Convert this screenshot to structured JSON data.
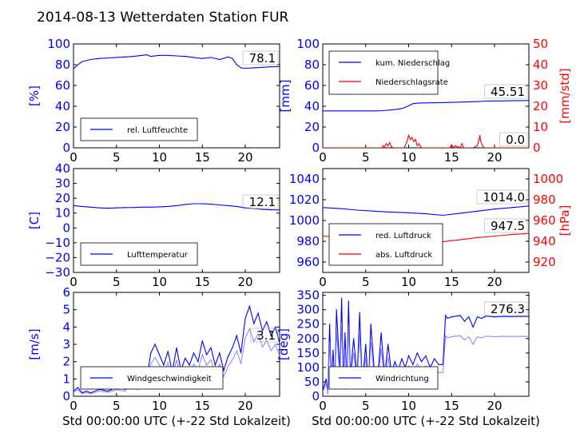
{
  "figure": {
    "title": "2014-08-13 Wetterdaten Station FUR",
    "xlabel": "Std 00:00:00 UTC (+-22 Std Lokalzeit)",
    "colors": {
      "blue": "#0000ff",
      "red": "#ff0000",
      "lightblue": "#8080ff",
      "black": "#000000"
    }
  },
  "chart_data": [
    {
      "type": "line",
      "xlim": [
        0,
        24
      ],
      "xticks": [
        "0",
        "5",
        "10",
        "15",
        "20"
      ],
      "ylim": [
        0,
        100
      ],
      "yticks": [
        "0",
        "20",
        "40",
        "60",
        "80",
        "100"
      ],
      "ylabel": "[%]",
      "legend": [
        "rel. Luftfeuchte"
      ],
      "annotation": "78.1",
      "series": [
        {
          "name": "rel. Luftfeuchte",
          "color": "#0000ff",
          "x": [
            0,
            0.5,
            1,
            2,
            3,
            4,
            5,
            6,
            7,
            8,
            8.5,
            9,
            10,
            11,
            12,
            13,
            14,
            15,
            16,
            17,
            18,
            18.5,
            19,
            19.5,
            20,
            21,
            22,
            23,
            24
          ],
          "values": [
            76,
            80,
            83,
            85,
            86,
            86.5,
            87,
            87.5,
            88,
            89,
            89.5,
            88,
            89,
            89,
            88.5,
            88,
            87,
            86,
            87,
            85,
            87.5,
            86,
            80,
            77,
            76.5,
            77,
            77.5,
            78,
            78.1
          ]
        }
      ]
    },
    {
      "type": "line",
      "xlim": [
        0,
        24
      ],
      "xticks": [
        "0",
        "5",
        "10",
        "15",
        "20"
      ],
      "ylim": [
        0,
        100
      ],
      "yticks": [
        "0",
        "20",
        "40",
        "60",
        "80",
        "100"
      ],
      "ylabel": "[mm]",
      "y2lim": [
        0,
        50
      ],
      "y2ticks": [
        "0",
        "10",
        "20",
        "30",
        "40",
        "50"
      ],
      "y2label": "[mm/std]",
      "legend": [
        "kum. Niederschlag",
        "Niederschlagsrate"
      ],
      "annotations": [
        "45.51",
        "0.0"
      ],
      "series": [
        {
          "name": "kum. Niederschlag",
          "color": "#0000ff",
          "axis": "left",
          "x": [
            0,
            6,
            7,
            8,
            9,
            9.5,
            10,
            10.5,
            11,
            12,
            14,
            16,
            18,
            19,
            20,
            22,
            24
          ],
          "values": [
            35.5,
            35.5,
            35.8,
            36.5,
            37.5,
            38.5,
            40.5,
            42.5,
            43,
            43.2,
            43.5,
            44,
            44.5,
            45,
            45.1,
            45.3,
            45.51
          ]
        },
        {
          "name": "Niederschlagsrate",
          "color": "#ff0000",
          "axis": "right",
          "x": [
            0,
            6.9,
            7,
            7.2,
            7.4,
            7.6,
            7.8,
            8.0,
            8.2,
            8.5,
            9.5,
            9.8,
            10.0,
            10.2,
            10.4,
            10.6,
            10.8,
            11.0,
            11.2,
            11.5,
            14.8,
            15.0,
            15.2,
            15.4,
            16.0,
            16.2,
            16.4,
            17.5,
            18.0,
            18.2,
            18.3,
            18.4,
            18.6,
            18.8,
            19.5,
            24
          ],
          "values": [
            0,
            0,
            1,
            0.5,
            2,
            1,
            2.5,
            0.5,
            0,
            0,
            0,
            3,
            6,
            4,
            5,
            3,
            4,
            1,
            2,
            0,
            0,
            1.5,
            0,
            1,
            0,
            2,
            0,
            0,
            1,
            4,
            6,
            3,
            1,
            0,
            0,
            0
          ]
        }
      ]
    },
    {
      "type": "line",
      "xlim": [
        0,
        24
      ],
      "xticks": [
        "0",
        "5",
        "10",
        "15",
        "20"
      ],
      "ylim": [
        -30,
        40
      ],
      "yticks": [
        "−30",
        "−20",
        "−10",
        "0",
        "10",
        "20",
        "30",
        "40"
      ],
      "ylabel": "[C]",
      "legend": [
        "Lufttemperatur"
      ],
      "annotation": "12.1",
      "series": [
        {
          "name": "Lufttemperatur",
          "color": "#0000ff",
          "x": [
            0,
            1,
            2,
            3,
            4,
            5,
            6,
            7,
            8,
            9,
            10,
            11,
            12,
            13,
            14,
            15,
            16,
            17,
            18,
            19,
            20,
            21,
            22,
            23,
            24
          ],
          "values": [
            15,
            14.5,
            14,
            13.5,
            13.3,
            13.5,
            13.7,
            13.8,
            14,
            14,
            14.2,
            14.5,
            15,
            15.8,
            16.3,
            16.3,
            16,
            15.5,
            15,
            14.5,
            13.5,
            13,
            12.5,
            12.2,
            12.1
          ]
        }
      ]
    },
    {
      "type": "line",
      "xlim": [
        0,
        24
      ],
      "xticks": [
        "0",
        "5",
        "10",
        "15",
        "20"
      ],
      "ylim": [
        950,
        1050
      ],
      "yticks": [
        "960",
        "980",
        "1000",
        "1020",
        "1040"
      ],
      "ylabel": "",
      "y2lim": [
        910,
        1010
      ],
      "y2ticks": [
        "920",
        "940",
        "960",
        "980",
        "1000"
      ],
      "y2label": "[hPa]",
      "legend": [
        "red. Luftdruck",
        "abs. Luftdruck"
      ],
      "annotations": [
        "1014.0",
        "947.5"
      ],
      "series": [
        {
          "name": "red. Luftdruck",
          "color": "#0000ff",
          "axis": "left",
          "x": [
            0,
            2,
            4,
            6,
            8,
            10,
            12,
            14,
            16,
            18,
            20,
            22,
            24
          ],
          "values": [
            1012.5,
            1011.5,
            1010,
            1009,
            1008,
            1007.5,
            1006.5,
            1005,
            1007,
            1009,
            1011,
            1012.5,
            1014
          ]
        },
        {
          "name": "abs. Luftdruck",
          "color": "#ff0000",
          "axis": "right",
          "x": [
            0,
            2,
            4,
            6,
            8,
            10,
            12,
            13,
            14,
            16,
            18,
            20,
            22,
            24
          ],
          "values": [
            945,
            944,
            943,
            942,
            941.5,
            941,
            940.5,
            939,
            939.5,
            941.5,
            943.5,
            945,
            946.5,
            947.5
          ]
        }
      ]
    },
    {
      "type": "line",
      "xlim": [
        0,
        24
      ],
      "xticks": [
        "0",
        "5",
        "10",
        "15",
        "20"
      ],
      "ylim": [
        0,
        6
      ],
      "yticks": [
        "0",
        "1",
        "2",
        "3",
        "4",
        "5",
        "6"
      ],
      "ylabel": "[m/s]",
      "legend": [
        "Windgeschwindigkeit"
      ],
      "annotation": "3.1",
      "series": [
        {
          "name": "Windgeschwindigkeit",
          "color": "#0000ff",
          "x": [
            0,
            0.5,
            1,
            1.5,
            2,
            3,
            4,
            5,
            6,
            6.5,
            7,
            7.5,
            8,
            8.5,
            9,
            9.5,
            10,
            10.5,
            11,
            11.5,
            12,
            12.5,
            13,
            13.5,
            14,
            14.5,
            15,
            15.5,
            16,
            16.5,
            17,
            17.5,
            18,
            18.5,
            19,
            19.5,
            20,
            20.5,
            21,
            21.5,
            22,
            22.5,
            23,
            23.5,
            24
          ],
          "values": [
            0.3,
            0.5,
            0.2,
            0.3,
            0.2,
            0.4,
            0.3,
            0.5,
            0.4,
            0.8,
            1.2,
            0.5,
            1.5,
            1.0,
            2.5,
            3.0,
            2.4,
            1.8,
            2.6,
            1.4,
            2.8,
            1.5,
            2.2,
            1.8,
            2.5,
            2.0,
            3.2,
            2.4,
            2.8,
            1.8,
            2.5,
            1.5,
            2.3,
            2.8,
            3.5,
            2.5,
            4.5,
            5.2,
            4.2,
            4.8,
            3.8,
            4.3,
            3.5,
            4.0,
            3.1
          ]
        }
      ]
    },
    {
      "type": "line",
      "xlim": [
        0,
        24
      ],
      "xticks": [
        "0",
        "5",
        "10",
        "15",
        "20"
      ],
      "ylim": [
        0,
        360
      ],
      "yticks": [
        "0",
        "50",
        "100",
        "150",
        "200",
        "250",
        "300",
        "350"
      ],
      "ylabel": "[deg]",
      "legend": [
        "Windrichtung"
      ],
      "annotation": "276.3",
      "series": [
        {
          "name": "Windrichtung",
          "color": "#0000ff",
          "x": [
            0,
            0.4,
            0.6,
            0.8,
            1.0,
            1.2,
            1.4,
            1.6,
            2.0,
            2.2,
            2.4,
            2.6,
            2.8,
            3.0,
            3.2,
            3.6,
            4.0,
            4.3,
            4.6,
            5.0,
            5.3,
            5.6,
            6.0,
            6.4,
            6.8,
            7.2,
            7.6,
            8.0,
            8.4,
            8.8,
            9.2,
            9.6,
            10.0,
            10.5,
            11.0,
            11.5,
            12.0,
            12.5,
            13.0,
            13.5,
            14.0,
            14.3,
            14.5,
            15,
            16,
            16.5,
            17,
            17.5,
            18,
            18.5,
            19,
            20,
            21,
            22,
            23,
            24
          ],
          "values": [
            20,
            60,
            10,
            250,
            40,
            160,
            30,
            300,
            80,
            340,
            50,
            220,
            30,
            330,
            70,
            200,
            60,
            290,
            40,
            180,
            30,
            250,
            90,
            60,
            220,
            70,
            180,
            80,
            120,
            90,
            130,
            100,
            140,
            110,
            150,
            120,
            140,
            100,
            130,
            110,
            110,
            280,
            270,
            275,
            280,
            260,
            275,
            240,
            275,
            270,
            278,
            275,
            277,
            276,
            277,
            276.3
          ]
        }
      ]
    }
  ]
}
